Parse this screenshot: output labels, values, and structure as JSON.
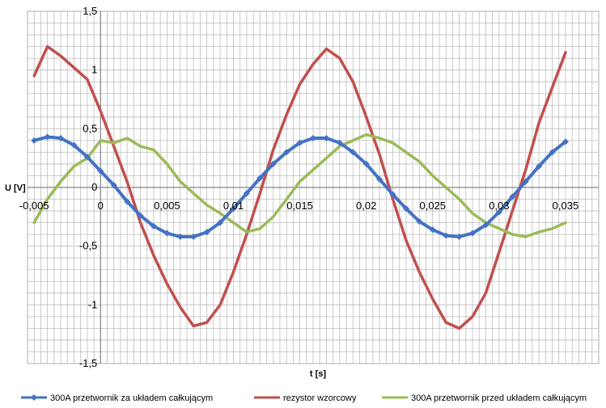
{
  "chart_data": {
    "type": "line",
    "title": "",
    "xlabel": "t [s]",
    "ylabel": "U [V]",
    "xlim": [
      -0.0055,
      0.0375
    ],
    "ylim": [
      -1.5,
      1.5
    ],
    "x_major_ticks": [
      -0.005,
      0,
      0.005,
      0.01,
      0.015,
      0.02,
      0.025,
      0.03,
      0.035
    ],
    "x_tick_labels": [
      "-0,005",
      "0",
      "0,005",
      "0,01",
      "0,015",
      "0,02",
      "0,025",
      "0,03",
      "0,035"
    ],
    "y_major_ticks": [
      -1.5,
      -1,
      -0.5,
      0,
      0.5,
      1,
      1.5
    ],
    "y_tick_labels": [
      "-1,5",
      "-1",
      "-0,5",
      "0",
      "0,5",
      "1",
      "1,5"
    ],
    "grid": true,
    "legend_position": "bottom",
    "series": [
      {
        "name": "300A przetwornik za układem całkującym",
        "color": "#4472C4",
        "marker": "diamond",
        "x": [
          -0.005,
          -0.004,
          -0.003,
          -0.002,
          -0.001,
          0,
          0.001,
          0.002,
          0.003,
          0.004,
          0.005,
          0.006,
          0.007,
          0.008,
          0.009,
          0.01,
          0.011,
          0.012,
          0.013,
          0.014,
          0.015,
          0.016,
          0.017,
          0.018,
          0.019,
          0.02,
          0.021,
          0.022,
          0.023,
          0.024,
          0.025,
          0.026,
          0.027,
          0.028,
          0.029,
          0.03,
          0.031,
          0.032,
          0.033,
          0.034,
          0.035
        ],
        "y": [
          0.4,
          0.43,
          0.42,
          0.36,
          0.26,
          0.14,
          0.02,
          -0.12,
          -0.24,
          -0.33,
          -0.39,
          -0.42,
          -0.42,
          -0.38,
          -0.3,
          -0.18,
          -0.05,
          0.08,
          0.2,
          0.3,
          0.38,
          0.42,
          0.42,
          0.38,
          0.3,
          0.2,
          0.07,
          -0.06,
          -0.18,
          -0.29,
          -0.36,
          -0.41,
          -0.42,
          -0.39,
          -0.32,
          -0.21,
          -0.08,
          0.05,
          0.18,
          0.3,
          0.39
        ]
      },
      {
        "name": "rezystor wzorcowy",
        "color": "#C0504D",
        "x": [
          -0.005,
          -0.004,
          -0.003,
          -0.002,
          -0.001,
          0,
          0.001,
          0.002,
          0.003,
          0.004,
          0.005,
          0.006,
          0.007,
          0.008,
          0.009,
          0.01,
          0.011,
          0.012,
          0.013,
          0.014,
          0.015,
          0.016,
          0.017,
          0.018,
          0.019,
          0.02,
          0.021,
          0.022,
          0.023,
          0.024,
          0.025,
          0.026,
          0.027,
          0.028,
          0.029,
          0.03,
          0.031,
          0.032,
          0.033,
          0.034,
          0.035
        ],
        "y": [
          0.95,
          1.2,
          1.12,
          1.02,
          0.92,
          0.65,
          0.35,
          0.05,
          -0.3,
          -0.58,
          -0.82,
          -1.02,
          -1.18,
          -1.15,
          -1.0,
          -0.72,
          -0.4,
          -0.05,
          0.32,
          0.62,
          0.88,
          1.05,
          1.18,
          1.1,
          0.9,
          0.6,
          0.28,
          -0.1,
          -0.45,
          -0.72,
          -0.95,
          -1.15,
          -1.2,
          -1.1,
          -0.9,
          -0.55,
          -0.2,
          0.15,
          0.55,
          0.85,
          1.15
        ]
      },
      {
        "name": "300A przetwornik przed układem całkującym",
        "color": "#9BBB59",
        "x": [
          -0.005,
          -0.004,
          -0.003,
          -0.002,
          -0.001,
          0,
          0.001,
          0.002,
          0.003,
          0.004,
          0.005,
          0.006,
          0.007,
          0.008,
          0.009,
          0.01,
          0.011,
          0.012,
          0.013,
          0.014,
          0.015,
          0.016,
          0.017,
          0.018,
          0.019,
          0.02,
          0.021,
          0.022,
          0.023,
          0.024,
          0.025,
          0.026,
          0.027,
          0.028,
          0.029,
          0.03,
          0.031,
          0.032,
          0.033,
          0.034,
          0.035
        ],
        "y": [
          -0.3,
          -0.1,
          0.05,
          0.18,
          0.25,
          0.4,
          0.38,
          0.42,
          0.35,
          0.32,
          0.2,
          0.05,
          -0.05,
          -0.15,
          -0.22,
          -0.3,
          -0.38,
          -0.35,
          -0.25,
          -0.1,
          0.05,
          0.15,
          0.25,
          0.35,
          0.4,
          0.45,
          0.42,
          0.38,
          0.3,
          0.22,
          0.1,
          0.0,
          -0.1,
          -0.22,
          -0.3,
          -0.35,
          -0.4,
          -0.42,
          -0.38,
          -0.35,
          -0.3
        ]
      }
    ]
  }
}
